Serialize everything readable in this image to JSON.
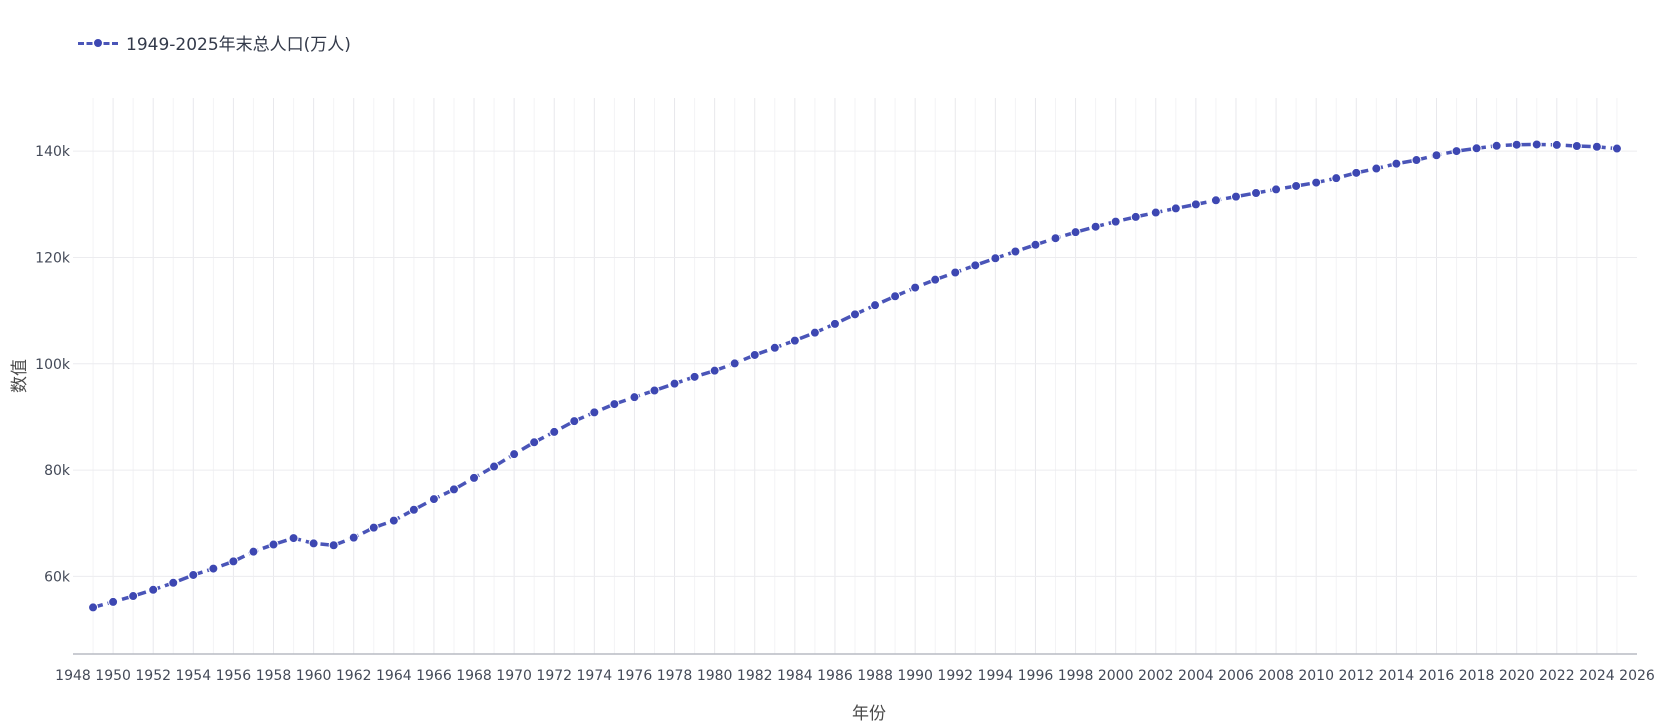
{
  "chart_data": {
    "type": "line",
    "title": "",
    "xlabel": "年份",
    "ylabel": "数值",
    "xlim": [
      1948,
      2026
    ],
    "ylim": [
      45400,
      150000
    ],
    "x_ticks": [
      1948,
      1950,
      1952,
      1954,
      1956,
      1958,
      1960,
      1962,
      1964,
      1966,
      1968,
      1970,
      1972,
      1974,
      1976,
      1978,
      1980,
      1982,
      1984,
      1986,
      1988,
      1990,
      1992,
      1994,
      1996,
      1998,
      2000,
      2002,
      2004,
      2006,
      2008,
      2010,
      2012,
      2014,
      2016,
      2018,
      2020,
      2022,
      2024,
      2026
    ],
    "y_ticks": [
      {
        "value": 60000,
        "label": "60k"
      },
      {
        "value": 80000,
        "label": "80k"
      },
      {
        "value": 100000,
        "label": "100k"
      },
      {
        "value": 120000,
        "label": "120k"
      },
      {
        "value": 140000,
        "label": "140k"
      }
    ],
    "grid": true,
    "legend_position": "top-left",
    "series": [
      {
        "name": "1949-2025年末总人口(万人)",
        "color": "#3d47b2",
        "x": [
          1949,
          1950,
          1951,
          1952,
          1953,
          1954,
          1955,
          1956,
          1957,
          1958,
          1959,
          1960,
          1961,
          1962,
          1963,
          1964,
          1965,
          1966,
          1967,
          1968,
          1969,
          1970,
          1971,
          1972,
          1973,
          1974,
          1975,
          1976,
          1977,
          1978,
          1979,
          1980,
          1981,
          1982,
          1983,
          1984,
          1985,
          1986,
          1987,
          1988,
          1989,
          1990,
          1991,
          1992,
          1993,
          1994,
          1995,
          1996,
          1997,
          1998,
          1999,
          2000,
          2001,
          2002,
          2003,
          2004,
          2005,
          2006,
          2007,
          2008,
          2009,
          2010,
          2011,
          2012,
          2013,
          2014,
          2015,
          2016,
          2017,
          2018,
          2019,
          2020,
          2021,
          2022,
          2023,
          2024,
          2025
        ],
        "values": [
          54167,
          55196,
          56300,
          57482,
          58796,
          60266,
          61465,
          62828,
          64653,
          65994,
          67207,
          66207,
          65859,
          67296,
          69172,
          70499,
          72538,
          74542,
          76368,
          78534,
          80671,
          82992,
          85229,
          87177,
          89211,
          90859,
          92420,
          93717,
          94974,
          96259,
          97542,
          98705,
          100072,
          101654,
          103008,
          104357,
          105851,
          107507,
          109300,
          111026,
          112704,
          114333,
          115823,
          117171,
          118517,
          119850,
          121121,
          122389,
          123626,
          124761,
          125786,
          126743,
          127627,
          128453,
          129227,
          129988,
          130756,
          131448,
          132129,
          132802,
          133450,
          134091,
          134916,
          135922,
          136726,
          137646,
          138326,
          139232,
          140011,
          140541,
          141008,
          141212,
          141260,
          141175,
          140967,
          140828,
          140489
        ]
      }
    ]
  }
}
